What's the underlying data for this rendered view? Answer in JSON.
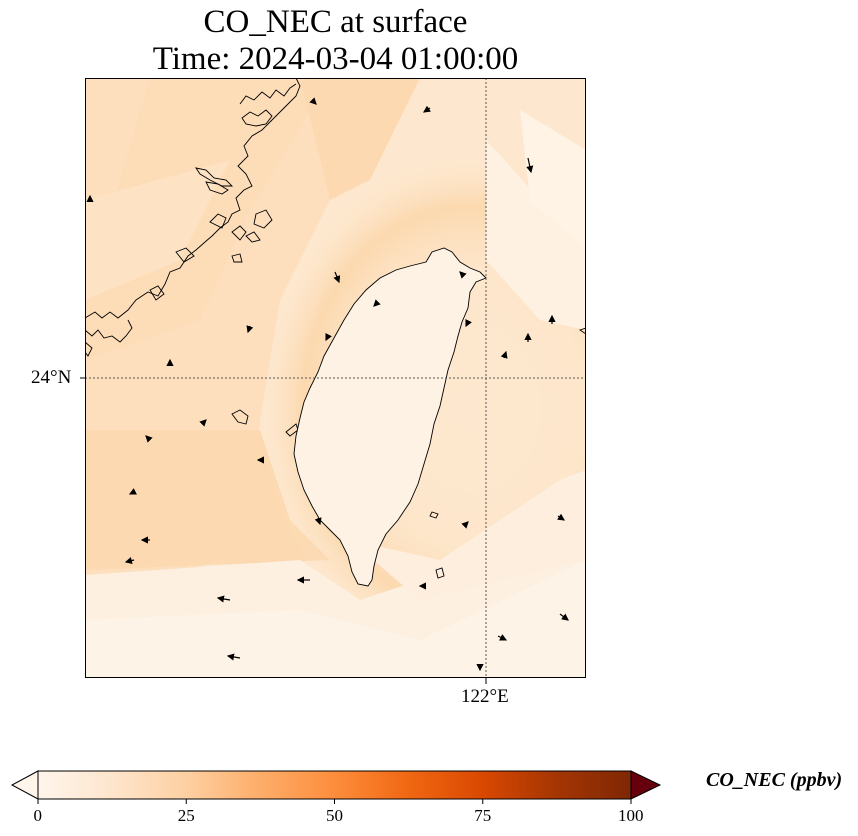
{
  "figure": {
    "title_line1": "CO_NEC at surface",
    "title_line2": "Time: 2024-03-04 01:00:00"
  },
  "map": {
    "lat_label": "24°N",
    "lon_label": "122°E",
    "gridline_style": "dotted",
    "colormap": [
      "#fff5eb",
      "#fde0c2",
      "#fdbf86",
      "#fd9c54",
      "#f47532",
      "#e0501a",
      "#bb1e05",
      "#8e0c02",
      "#67000d"
    ]
  },
  "colorbar": {
    "title": "CO_NEC (ppbv)",
    "ticks": [
      "0",
      "25",
      "50",
      "75",
      "100"
    ],
    "range": [
      0,
      100
    ],
    "extend": "both"
  },
  "chart_data": {
    "type": "heatmap",
    "variable": "CO_NEC",
    "units": "ppbv",
    "level": "surface",
    "time": "2024-03-04 01:00:00",
    "colorbar_range": [
      0,
      100
    ],
    "value_range_shown": [
      2,
      22
    ],
    "features": [
      "coastlines",
      "wind vectors"
    ]
  }
}
